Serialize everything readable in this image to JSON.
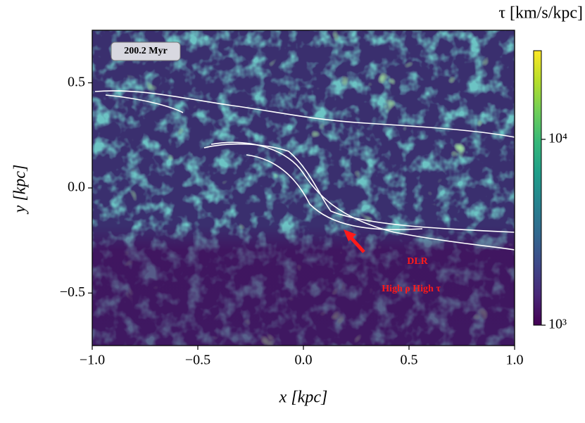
{
  "chart_data": {
    "type": "heatmap",
    "xlabel": "x [kpc]",
    "ylabel": "y [kpc]",
    "xlim": [
      -1.0,
      1.0
    ],
    "ylim": [
      -0.75,
      0.75
    ],
    "xticks": [
      {
        "value": -1.0,
        "label": "−1.0"
      },
      {
        "value": -0.5,
        "label": "−0.5"
      },
      {
        "value": 0.0,
        "label": "0.0"
      },
      {
        "value": 0.5,
        "label": "0.5"
      },
      {
        "value": 1.0,
        "label": "1.0"
      }
    ],
    "yticks": [
      {
        "value": -0.5,
        "label": "−0.5"
      },
      {
        "value": 0.0,
        "label": "0.0"
      },
      {
        "value": 0.5,
        "label": "0.5"
      }
    ],
    "colorbar": {
      "label": "τ [km/s/kpc]",
      "log": true,
      "colormap": "viridis",
      "lim": [
        1000,
        30000
      ],
      "ticks": [
        {
          "value": 1000,
          "label": "10³"
        },
        {
          "value": 10000,
          "label": "10⁴"
        }
      ]
    },
    "annotations": {
      "time": "200.2 Myr",
      "dlr": "DLR",
      "region": "High ρ High τ"
    },
    "arrow_color": "#ff1a1a"
  }
}
